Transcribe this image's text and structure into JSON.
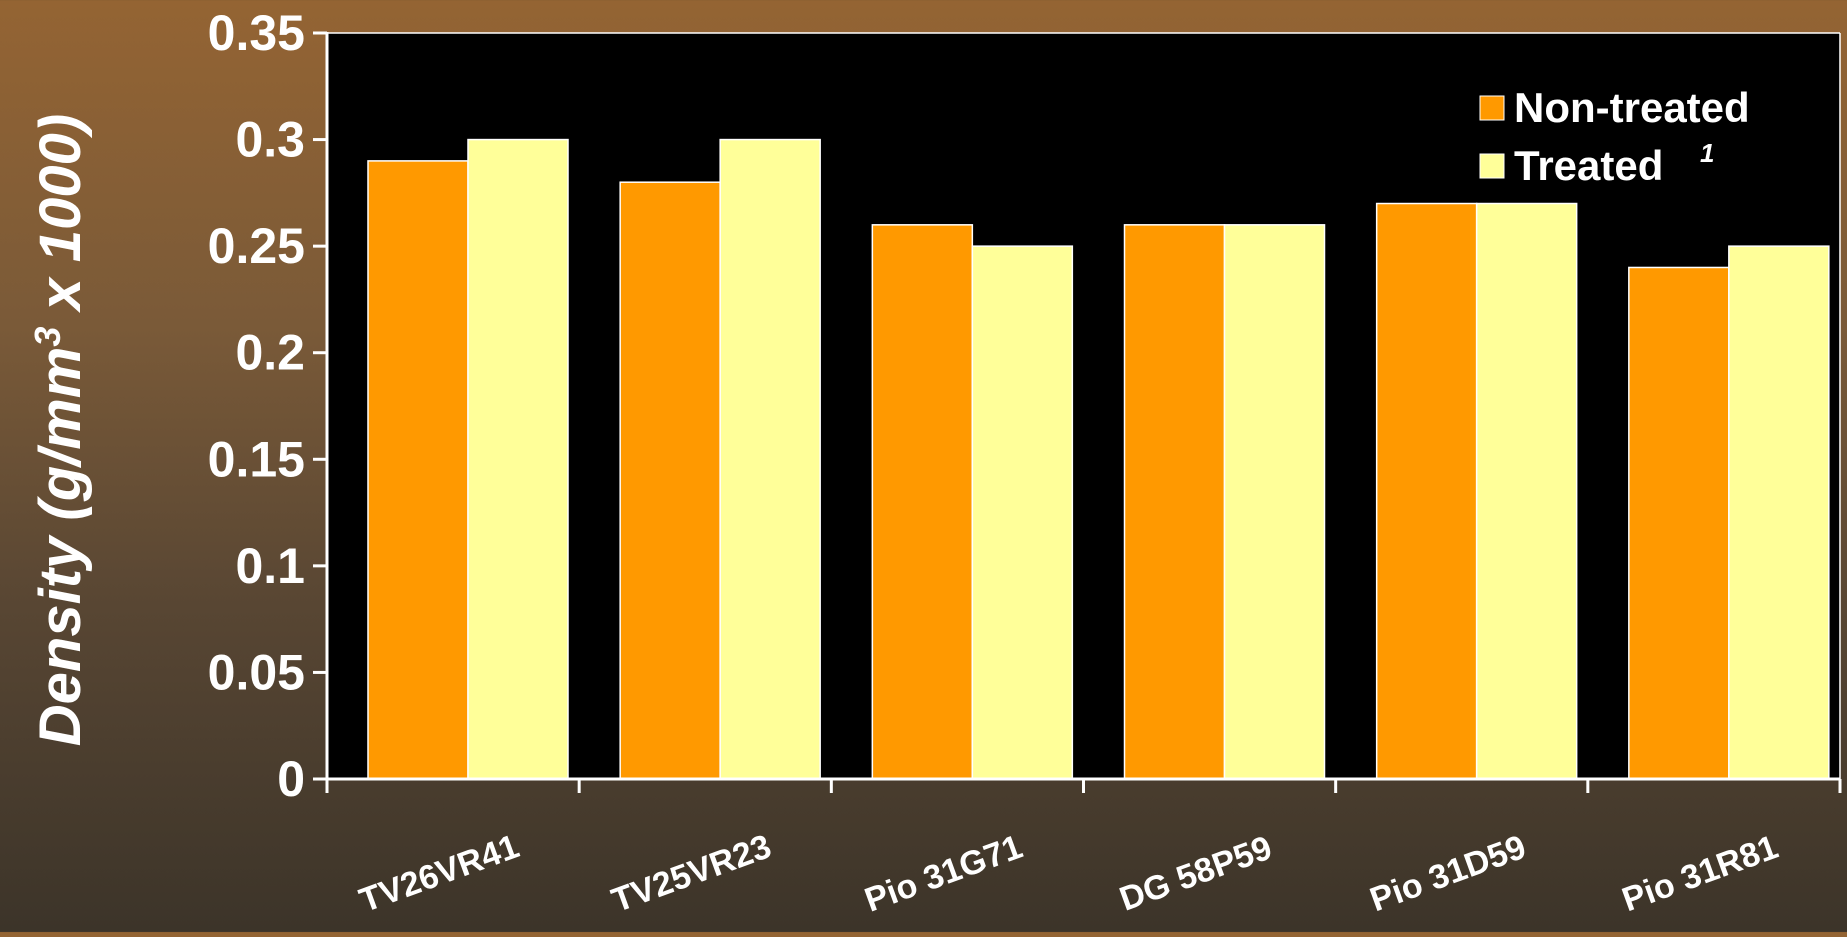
{
  "chart_data": {
    "type": "bar",
    "title": "",
    "xlabel": "",
    "ylabel": {
      "prefix": "Density (g/mm",
      "superscript": "3",
      "suffix": " x 1000)"
    },
    "ylim": [
      0,
      0.35
    ],
    "yticks": [
      "0",
      "0.05",
      "0.1",
      "0.15",
      "0.2",
      "0.25",
      "0.3",
      "0.35"
    ],
    "yticks_values": [
      0,
      0.05,
      0.1,
      0.15,
      0.2,
      0.25,
      0.3,
      0.35
    ],
    "categories": [
      "TV26VR41",
      "TV25VR23",
      "Pio 31G71",
      "DG 58P59",
      "Pio 31D59",
      "Pio 31R81"
    ],
    "series": [
      {
        "name": "Non-treated",
        "values": [
          0.29,
          0.28,
          0.26,
          0.26,
          0.27,
          0.24
        ]
      },
      {
        "name": "Treated",
        "values": [
          0.3,
          0.3,
          0.25,
          0.26,
          0.27,
          0.25
        ]
      }
    ],
    "legend": {
      "position": "top-right",
      "items": [
        {
          "label": "Non-treated",
          "superscript": ""
        },
        {
          "label": "Treated",
          "superscript": "1"
        }
      ]
    },
    "grid": false
  },
  "colors": {
    "non_treated": "#ff9900",
    "treated": "#ffff99",
    "plot_background": "#000000",
    "axis": "#ffffff",
    "text": "#ffffff"
  }
}
